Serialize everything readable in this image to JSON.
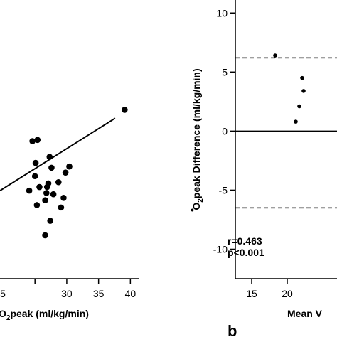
{
  "chart_data": [
    {
      "type": "scatter",
      "panel_label": "",
      "xlabel_main": "O",
      "xlabel_sub": "2",
      "xlabel_rest": "peak (ml/kg/min)",
      "xlim": [
        19.5,
        41.3
      ],
      "ylim": [
        36.6,
        59.7
      ],
      "x_ticks": [
        {
          "value": 30,
          "label": "30"
        },
        {
          "value": 35,
          "label": "35"
        },
        {
          "value": 40,
          "label": "40"
        }
      ],
      "partial_tick_label": {
        "value": 25,
        "label": "5"
      },
      "points": [
        {
          "x": 24.6,
          "y": 48.0
        },
        {
          "x": 25.4,
          "y": 48.1
        },
        {
          "x": 25.1,
          "y": 46.2
        },
        {
          "x": 27.3,
          "y": 46.7
        },
        {
          "x": 27.6,
          "y": 45.8
        },
        {
          "x": 30.4,
          "y": 45.9
        },
        {
          "x": 29.8,
          "y": 45.4
        },
        {
          "x": 25.0,
          "y": 45.1
        },
        {
          "x": 25.7,
          "y": 44.2
        },
        {
          "x": 26.9,
          "y": 44.2
        },
        {
          "x": 27.1,
          "y": 44.5
        },
        {
          "x": 28.7,
          "y": 44.6
        },
        {
          "x": 27.9,
          "y": 43.6
        },
        {
          "x": 24.1,
          "y": 43.9
        },
        {
          "x": 26.8,
          "y": 43.7
        },
        {
          "x": 26.6,
          "y": 43.1
        },
        {
          "x": 29.5,
          "y": 43.3
        },
        {
          "x": 25.3,
          "y": 42.7
        },
        {
          "x": 29.1,
          "y": 42.5
        },
        {
          "x": 27.4,
          "y": 41.4
        },
        {
          "x": 26.6,
          "y": 40.2
        },
        {
          "x": 39.1,
          "y": 50.6
        }
      ],
      "regression_line": {
        "x1": 19.5,
        "y1": 43.9,
        "x2": 37.6,
        "y2": 49.9
      },
      "annotations": [
        "r=0.463",
        "p<0.001"
      ]
    },
    {
      "type": "scatter",
      "panel_label": "b",
      "ylabel_main": "O",
      "ylabel_sub": "2",
      "ylabel_rest": "peak Difference (ml/kg/min)",
      "xlabel": "Mean V",
      "xlim": [
        12.7,
        27.0
      ],
      "ylim": [
        -12.5,
        11.1
      ],
      "x_ticks": [
        {
          "value": 15,
          "label": "15"
        },
        {
          "value": 20,
          "label": "20"
        }
      ],
      "y_ticks": [
        {
          "value": -10,
          "label": "-10"
        },
        {
          "value": -5,
          "label": "-5"
        },
        {
          "value": 0,
          "label": "0"
        },
        {
          "value": 5,
          "label": "5"
        },
        {
          "value": 10,
          "label": "10"
        }
      ],
      "mean_line": 0,
      "limits_of_agreement": [
        6.2,
        -6.5
      ],
      "points": [
        {
          "x": 18.3,
          "y": 6.4
        },
        {
          "x": 22.1,
          "y": 4.5
        },
        {
          "x": 22.3,
          "y": 3.4
        },
        {
          "x": 21.7,
          "y": 2.1
        },
        {
          "x": 21.2,
          "y": 0.8
        }
      ]
    }
  ]
}
